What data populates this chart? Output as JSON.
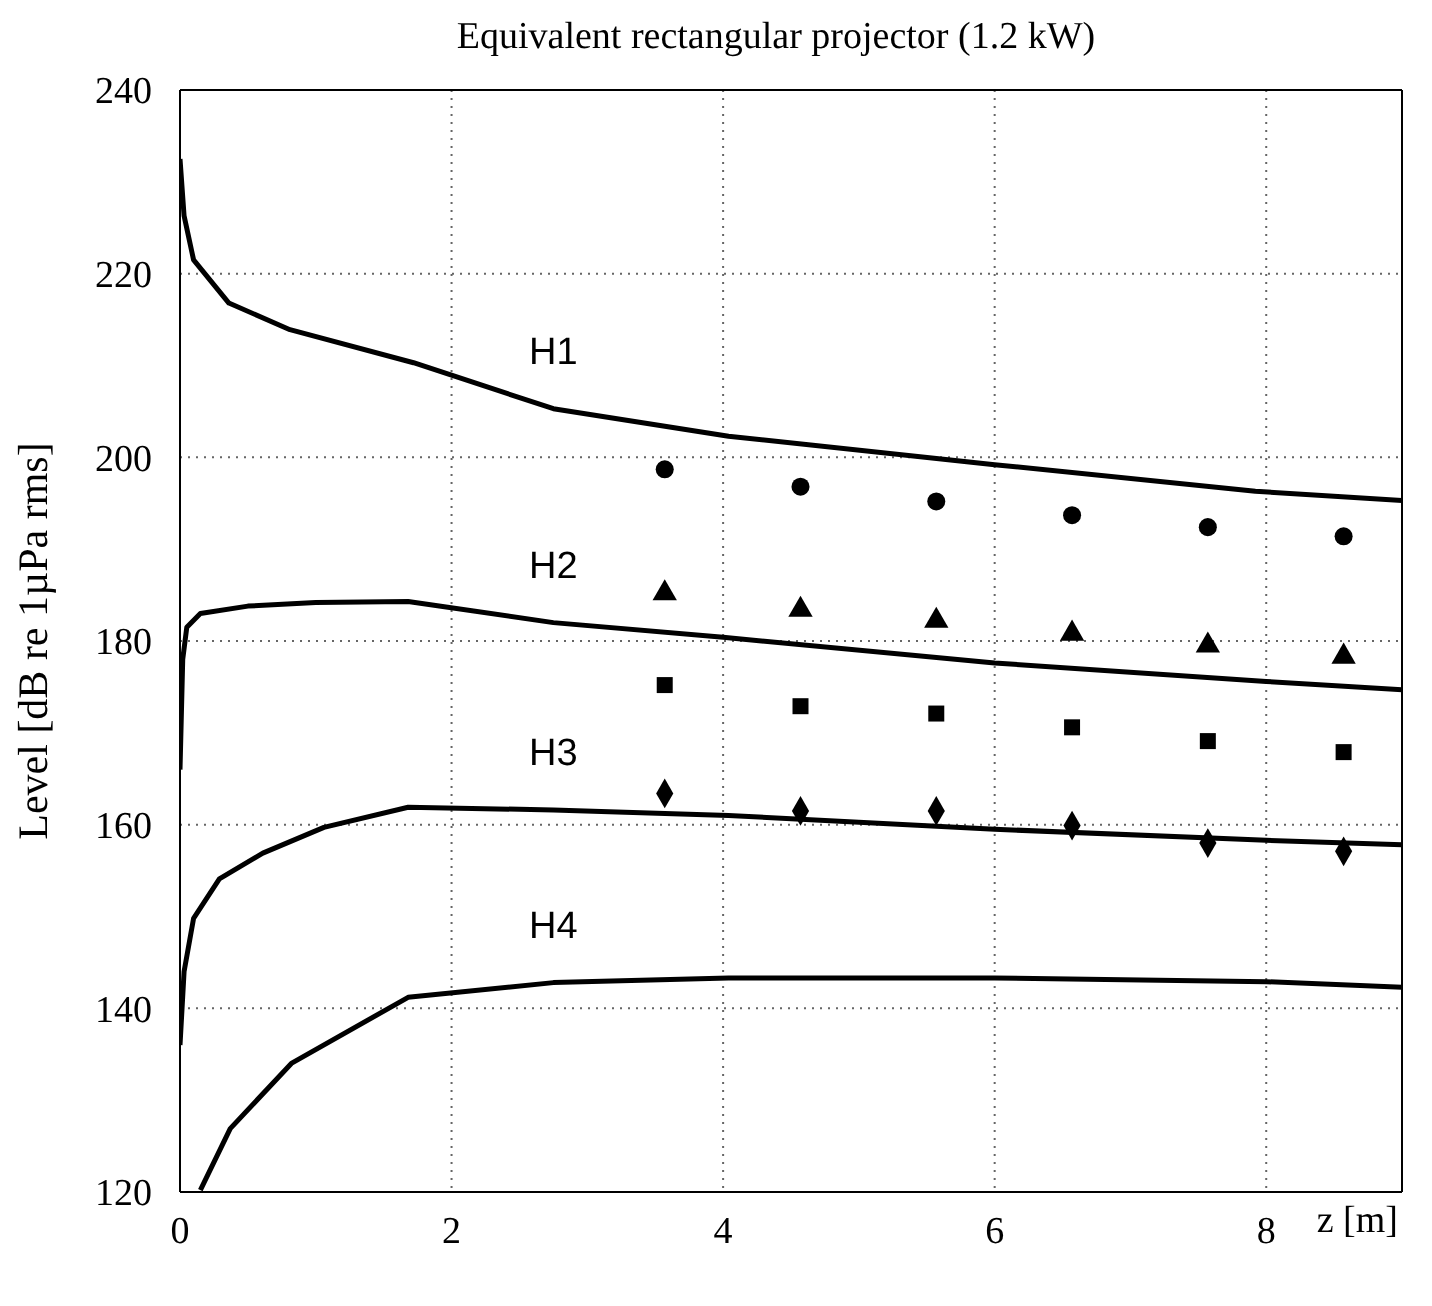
{
  "chart_data": {
    "type": "line",
    "title": "Equivalent rectangular projector  (1.2 kW)",
    "xlabel": "z [m]",
    "ylabel": "Level  [dB re 1µPa rms]",
    "xlim": [
      0,
      9
    ],
    "xticks": [
      0,
      2,
      4,
      6,
      8
    ],
    "ylim": [
      120,
      240
    ],
    "yticks": [
      120,
      140,
      160,
      180,
      200,
      220,
      240
    ],
    "grid": true,
    "series": [
      {
        "name": "H1",
        "color": "#000000",
        "marker": "none",
        "x": [
          0,
          0.03,
          0.1,
          0.36,
          0.81,
          1.72,
          2.75,
          4.04,
          6,
          7.92,
          9
        ],
        "values": [
          232.5,
          226.3,
          221.5,
          216.8,
          213.9,
          210.3,
          205.3,
          202.3,
          199.2,
          196.3,
          195.3
        ]
      },
      {
        "name": "H2",
        "color": "#000000",
        "marker": "none",
        "x": [
          0,
          0.02,
          0.05,
          0.15,
          0.5,
          1,
          1.68,
          2.75,
          4,
          6,
          8,
          9
        ],
        "values": [
          166,
          178,
          181.5,
          183,
          183.8,
          184.2,
          184.3,
          182,
          180.4,
          177.6,
          175.6,
          174.7
        ]
      },
      {
        "name": "H3",
        "color": "#000000",
        "marker": "none",
        "x": [
          0,
          0.03,
          0.1,
          0.29,
          0.61,
          1.06,
          1.68,
          2.75,
          4.04,
          6,
          8,
          9
        ],
        "values": [
          136,
          144,
          149.8,
          154.1,
          156.9,
          159.7,
          161.9,
          161.6,
          161,
          159.5,
          158.3,
          157.8
        ]
      },
      {
        "name": "H4",
        "color": "#000000",
        "marker": "none",
        "x": [
          0.15,
          0.37,
          0.82,
          1.68,
          2.75,
          4.04,
          6,
          8,
          9
        ],
        "values": [
          120.2,
          126.9,
          134,
          141.2,
          142.8,
          143.3,
          143.3,
          142.9,
          142.3
        ]
      },
      {
        "type": "scatter",
        "color": "#000000",
        "marker": "circle",
        "x": [
          3.57,
          4.57,
          5.57,
          6.57,
          7.57,
          8.57
        ],
        "values": [
          198.7,
          196.8,
          195.2,
          193.7,
          192.4,
          191.4
        ]
      },
      {
        "type": "scatter",
        "color": "#000000",
        "marker": "triangle",
        "x": [
          3.57,
          4.57,
          5.57,
          6.57,
          7.57,
          8.57
        ],
        "values": [
          185.2,
          183.4,
          182.2,
          180.8,
          179.5,
          178.3
        ]
      },
      {
        "type": "scatter",
        "color": "#000000",
        "marker": "square",
        "x": [
          3.57,
          4.57,
          5.57,
          6.57,
          7.57,
          8.57
        ],
        "values": [
          175.2,
          172.9,
          172.1,
          170.6,
          169.1,
          167.9
        ]
      },
      {
        "type": "scatter",
        "color": "#000000",
        "marker": "diamond",
        "x": [
          3.57,
          4.57,
          5.57,
          6.57,
          7.57,
          8.57
        ],
        "values": [
          163.4,
          161.5,
          161.5,
          159.9,
          158,
          157.1
        ]
      }
    ]
  }
}
